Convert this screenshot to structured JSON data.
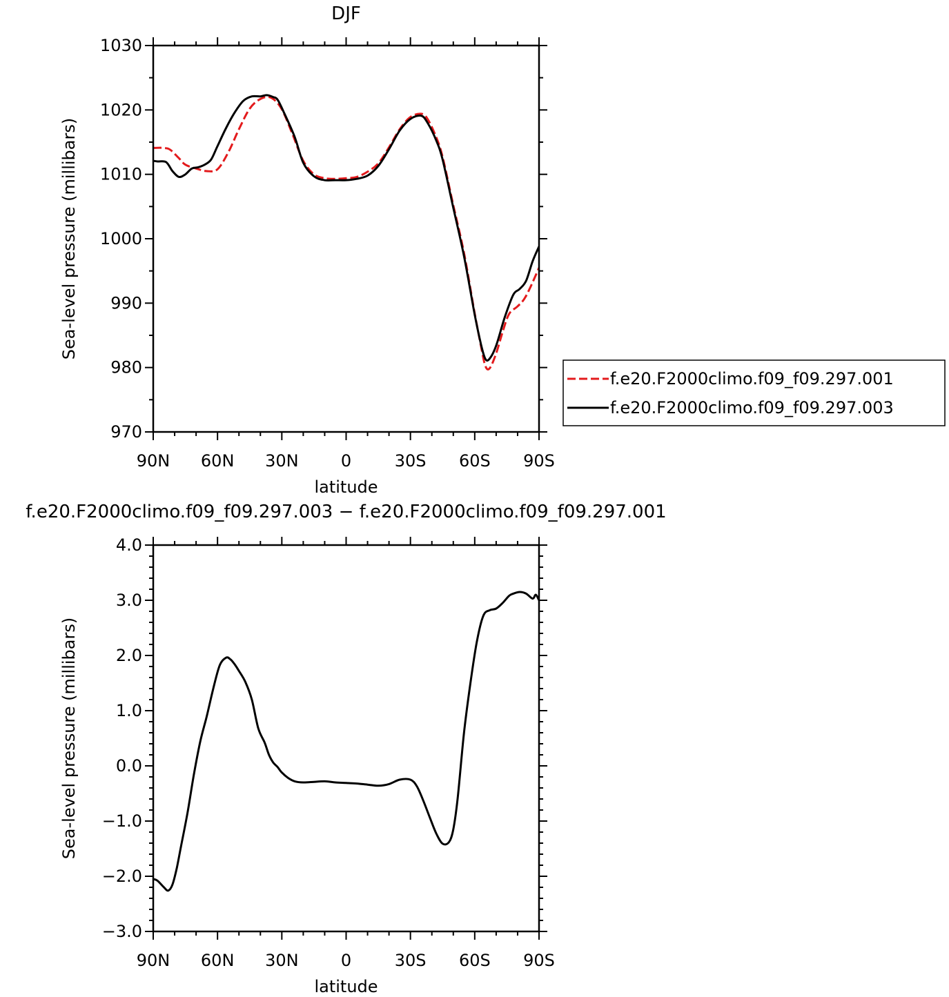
{
  "chart_data": [
    {
      "type": "line",
      "title": "DJF",
      "xlabel": "latitude",
      "ylabel": "Sea-level pressure (millibars)",
      "xlim": [
        90,
        -90
      ],
      "ylim": [
        970,
        1030
      ],
      "x_ticks": [
        {
          "value": 90,
          "label": "90N"
        },
        {
          "value": 60,
          "label": "60N"
        },
        {
          "value": 30,
          "label": "30N"
        },
        {
          "value": 0,
          "label": "0"
        },
        {
          "value": -30,
          "label": "30S"
        },
        {
          "value": -60,
          "label": "60S"
        },
        {
          "value": -90,
          "label": "90S"
        }
      ],
      "y_ticks": [
        {
          "value": 1030,
          "label": "1030"
        },
        {
          "value": 1020,
          "label": "1020"
        },
        {
          "value": 1010,
          "label": "1010"
        },
        {
          "value": 1000,
          "label": "1000"
        },
        {
          "value": 990,
          "label": "990"
        },
        {
          "value": 980,
          "label": "980"
        },
        {
          "value": 970,
          "label": "970"
        }
      ],
      "legend_position": "right",
      "series": [
        {
          "name": "f.e20.F2000climo.f09_f09.297.001",
          "color": "#e31a1c",
          "dash": "dashed",
          "x": [
            90,
            85,
            82,
            78,
            75,
            70,
            65,
            60,
            55,
            50,
            45,
            40,
            35,
            30,
            25,
            20,
            15,
            10,
            5,
            0,
            -5,
            -10,
            -15,
            -20,
            -25,
            -30,
            -35,
            -38,
            -42,
            -45,
            -50,
            -55,
            -60,
            -63,
            -65,
            -67,
            -70,
            -73,
            -76,
            -80,
            -83,
            -86,
            -90
          ],
          "y": [
            1014.1,
            1014.1,
            1013.8,
            1012.5,
            1011.5,
            1010.9,
            1010.5,
            1010.8,
            1013.4,
            1017.0,
            1020.2,
            1021.7,
            1021.9,
            1020.1,
            1016.2,
            1012.1,
            1010.0,
            1009.4,
            1009.3,
            1009.4,
            1009.6,
            1010.4,
            1011.7,
            1014.2,
            1017.0,
            1018.9,
            1019.4,
            1018.6,
            1015.8,
            1012.7,
            1005.2,
            997.8,
            988.4,
            983.2,
            980.2,
            979.9,
            982.2,
            985.5,
            988.3,
            989.5,
            990.6,
            992.5,
            995.5
          ]
        },
        {
          "name": "f.e20.F2000climo.f09_f09.297.003",
          "color": "#000000",
          "dash": "solid",
          "x": [
            90,
            88,
            84,
            81,
            78,
            75,
            72,
            69,
            66,
            63,
            60,
            56,
            52,
            48,
            44,
            40,
            37,
            34,
            32,
            29,
            24,
            20,
            15,
            10,
            5,
            0,
            -5,
            -10,
            -15,
            -20,
            -25,
            -30,
            -35,
            -38,
            -42,
            -45,
            -50,
            -55,
            -60,
            -63,
            -65,
            -67,
            -70,
            -74,
            -78,
            -81,
            -84,
            -87,
            -90
          ],
          "y": [
            1012.1,
            1012.0,
            1011.9,
            1010.5,
            1009.6,
            1010.0,
            1010.9,
            1011.1,
            1011.5,
            1012.3,
            1014.4,
            1017.2,
            1019.6,
            1021.4,
            1022.1,
            1022.1,
            1022.3,
            1022.0,
            1021.6,
            1019.6,
            1015.8,
            1011.8,
            1009.7,
            1009.1,
            1009.1,
            1009.1,
            1009.3,
            1009.8,
            1011.3,
            1013.9,
            1016.8,
            1018.6,
            1019.1,
            1018.0,
            1015.3,
            1012.3,
            1004.8,
            997.3,
            988.2,
            983.5,
            981.3,
            981.4,
            983.4,
            987.8,
            991.3,
            992.2,
            993.5,
            996.5,
            998.8
          ]
        }
      ]
    },
    {
      "type": "line",
      "title": "f.e20.F2000climo.f09_f09.297.003 − f.e20.F2000climo.f09_f09.297.001",
      "xlabel": "latitude",
      "ylabel": "Sea-level pressure (millibars)",
      "xlim": [
        90,
        -90
      ],
      "ylim": [
        -3.0,
        4.0
      ],
      "x_ticks": [
        {
          "value": 90,
          "label": "90N"
        },
        {
          "value": 60,
          "label": "60N"
        },
        {
          "value": 30,
          "label": "30N"
        },
        {
          "value": 0,
          "label": "0"
        },
        {
          "value": -30,
          "label": "30S"
        },
        {
          "value": -60,
          "label": "60S"
        },
        {
          "value": -90,
          "label": "90S"
        }
      ],
      "y_ticks": [
        {
          "value": 4.0,
          "label": "4.0"
        },
        {
          "value": 3.0,
          "label": "3.0"
        },
        {
          "value": 2.0,
          "label": "2.0"
        },
        {
          "value": 1.0,
          "label": "1.0"
        },
        {
          "value": 0.0,
          "label": "0.0"
        },
        {
          "value": -1.0,
          "label": "−1.0"
        },
        {
          "value": -2.0,
          "label": "−2.0"
        },
        {
          "value": -3.0,
          "label": "−3.0"
        }
      ],
      "series": [
        {
          "color": "#000000",
          "dash": "solid",
          "x": [
            90,
            88,
            85,
            83,
            81,
            79,
            77,
            74,
            71,
            68,
            65,
            62,
            59,
            56,
            54,
            52,
            50,
            47,
            44,
            41,
            38,
            36,
            34,
            32,
            30,
            27,
            24,
            20,
            15,
            10,
            5,
            0,
            -5,
            -10,
            -15,
            -20,
            -25,
            -30,
            -33,
            -36,
            -39,
            -42,
            -45,
            -48,
            -50,
            -52,
            -55,
            -58,
            -61,
            -64,
            -67,
            -70,
            -73,
            -76,
            -78,
            -81,
            -84,
            -87,
            -88.5,
            -90
          ],
          "y": [
            -2.05,
            -2.08,
            -2.2,
            -2.26,
            -2.15,
            -1.85,
            -1.45,
            -0.85,
            -0.15,
            0.45,
            0.9,
            1.4,
            1.82,
            1.96,
            1.93,
            1.84,
            1.72,
            1.52,
            1.2,
            0.68,
            0.42,
            0.2,
            0.06,
            -0.02,
            -0.12,
            -0.22,
            -0.28,
            -0.3,
            -0.29,
            -0.28,
            -0.3,
            -0.31,
            -0.32,
            -0.34,
            -0.36,
            -0.33,
            -0.25,
            -0.25,
            -0.37,
            -0.63,
            -0.93,
            -1.22,
            -1.41,
            -1.38,
            -1.15,
            -0.6,
            0.6,
            1.5,
            2.25,
            2.72,
            2.82,
            2.85,
            2.95,
            3.08,
            3.12,
            3.15,
            3.12,
            3.03,
            3.1,
            3.0
          ]
        }
      ]
    }
  ]
}
